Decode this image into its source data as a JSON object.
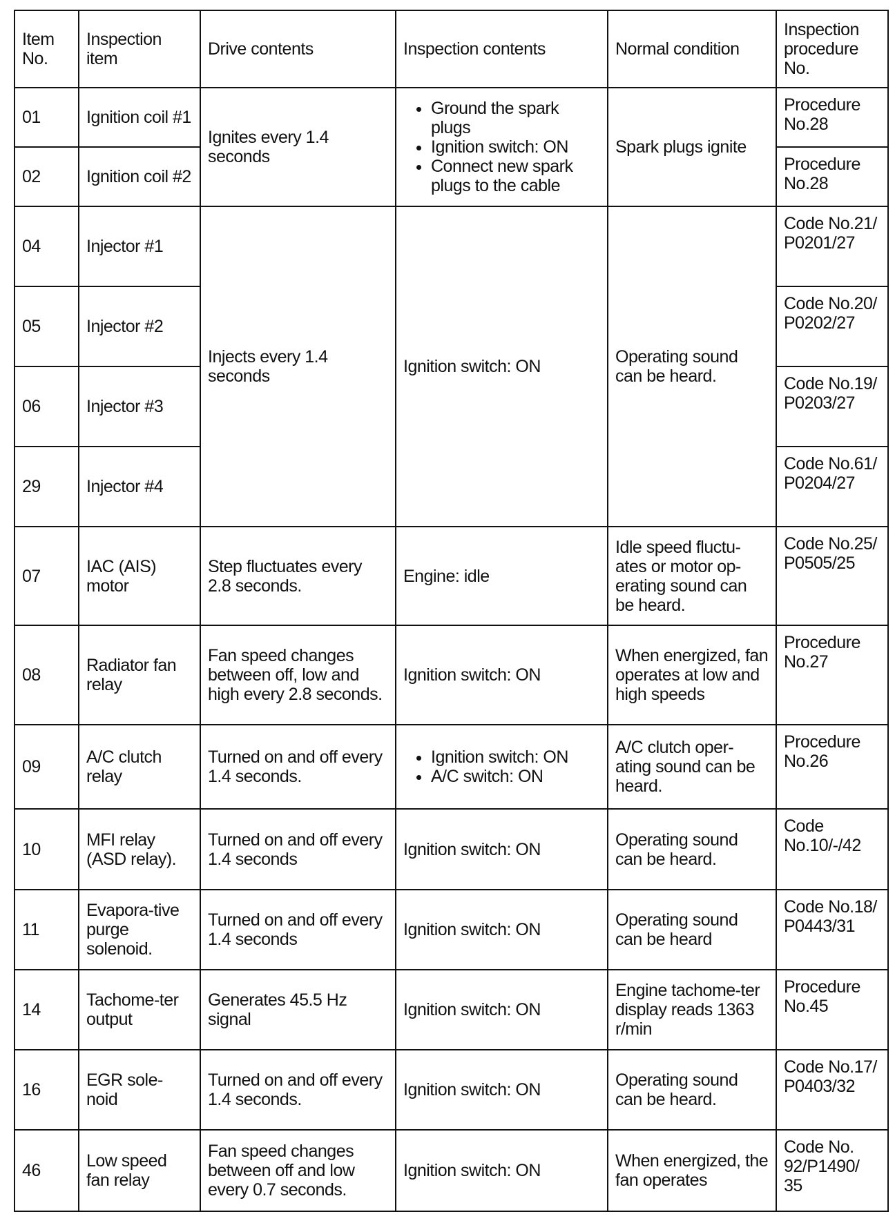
{
  "headers": [
    "Item No.",
    "Inspection item",
    "Drive contents",
    "Inspection contents",
    "Normal condition",
    "Inspection procedure No."
  ],
  "rows": [
    {
      "no": "01",
      "item": "Ignition coil #1",
      "drive": "Ignites every 1.4 seconds",
      "insp": [
        "Ground the spark plugs",
        "Ignition switch: ON",
        "Connect new spark plugs to the cable"
      ],
      "normal": "Spark plugs ignite",
      "proc": "Procedure No.28"
    },
    {
      "no": "02",
      "item": "Ignition coil #2",
      "proc": "Procedure No.28"
    },
    {
      "no": "04",
      "item": "Injector #1",
      "drive": "Injects every 1.4 seconds",
      "insp": "Ignition switch: ON",
      "normal": "Operating sound can be heard.",
      "proc": "Code No.21/ P0201/27"
    },
    {
      "no": "05",
      "item": "Injector #2",
      "proc": "Code No.20/ P0202/27"
    },
    {
      "no": "06",
      "item": "Injector #3",
      "proc": "Code No.19/ P0203/27"
    },
    {
      "no": "29",
      "item": "Injector #4",
      "proc": "Code No.61/ P0204/27"
    },
    {
      "no": "07",
      "item": "IAC (AIS) motor",
      "drive": "Step fluctuates every 2.8 seconds.",
      "insp": "Engine: idle",
      "normal": "Idle speed fluctu-ates or motor op-erating sound can be heard.",
      "proc": "Code No.25/ P0505/25"
    },
    {
      "no": "08",
      "item": "Radiator fan relay",
      "drive": "Fan speed changes between off, low and high every 2.8 seconds.",
      "insp": "Ignition switch: ON",
      "normal": "When energized, fan operates at low and high speeds",
      "proc": "Procedure No.27"
    },
    {
      "no": "09",
      "item": "A/C clutch relay",
      "drive": "Turned on and off every 1.4 seconds.",
      "insp": [
        "Ignition switch: ON",
        "A/C switch: ON"
      ],
      "normal": "A/C clutch oper-ating sound can be heard.",
      "proc": "Procedure No.26"
    },
    {
      "no": "10",
      "item": "MFI relay (ASD relay).",
      "drive": "Turned on and off every 1.4 seconds",
      "insp": "Ignition switch: ON",
      "normal": "Operating sound can be heard.",
      "proc": "Code No.10/-/42"
    },
    {
      "no": "11",
      "item": "Evapora-tive purge solenoid.",
      "drive": "Turned on and off every 1.4 seconds",
      "insp": "Ignition switch: ON",
      "normal": "Operating sound can be heard",
      "proc": "Code No.18/ P0443/31"
    },
    {
      "no": "14",
      "item": "Tachome-ter output",
      "drive": "Generates 45.5 Hz signal",
      "insp": "Ignition switch: ON",
      "normal": "Engine tachome-ter display reads 1363 r/min",
      "proc": "Procedure No.45"
    },
    {
      "no": "16",
      "item": "EGR sole-noid",
      "drive": "Turned on and off every 1.4 seconds.",
      "insp": "Ignition switch: ON",
      "normal": "Operating sound can be heard.",
      "proc": "Code No.17/ P0403/32"
    },
    {
      "no": "46",
      "item": "Low speed fan relay",
      "drive": "Fan speed changes between off and low every 0.7 seconds.",
      "insp": "Ignition switch: ON",
      "normal": "When energized, the fan operates",
      "proc": "Code No. 92/P1490/ 35"
    }
  ]
}
